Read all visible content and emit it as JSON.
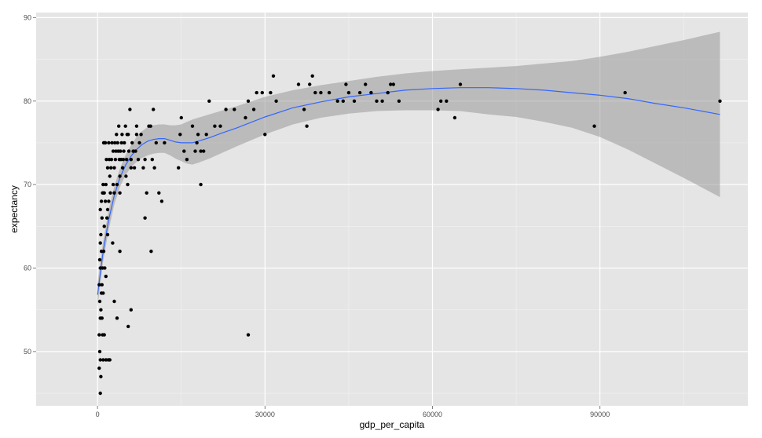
{
  "chart_data": {
    "type": "scatter",
    "title": "",
    "xlabel": "gdp_per_capita",
    "ylabel": "expectancy",
    "xlim": [
      -11000,
      116500
    ],
    "ylim": [
      43.5,
      90.6
    ],
    "x_ticks": [
      0,
      30000,
      60000,
      90000
    ],
    "x_tick_labels": [
      "0",
      "30000",
      "60000",
      "90000"
    ],
    "y_ticks": [
      50,
      60,
      70,
      80,
      90
    ],
    "y_tick_labels": [
      "50",
      "60",
      "70",
      "80",
      "90"
    ],
    "grid": true,
    "legend": "none",
    "colors": {
      "panel": "#e5e5e5",
      "grid_major": "#ffffff",
      "points": "#000000",
      "smooth_line": "#3366ff",
      "confidence_band": "#999999"
    },
    "series": [
      {
        "kind": "points",
        "x": [
          300,
          300,
          300,
          400,
          400,
          400,
          500,
          500,
          500,
          500,
          500,
          500,
          600,
          600,
          600,
          700,
          700,
          700,
          800,
          800,
          900,
          900,
          900,
          1000,
          1000,
          1000,
          1100,
          1100,
          1200,
          1200,
          1200,
          1300,
          1300,
          1400,
          1400,
          1500,
          1500,
          1500,
          1600,
          1700,
          1800,
          1800,
          1900,
          2000,
          2000,
          2100,
          2200,
          2300,
          2400,
          2500,
          2600,
          2700,
          2800,
          2800,
          3000,
          3000,
          3100,
          3200,
          3300,
          3400,
          3500,
          3600,
          3700,
          3800,
          3900,
          4000,
          4000,
          4100,
          4200,
          4300,
          4400,
          4500,
          4600,
          4700,
          4800,
          5000,
          5100,
          5200,
          5300,
          5400,
          5500,
          5600,
          5800,
          6000,
          6000,
          6200,
          6400,
          6600,
          6800,
          7000,
          7300,
          7500,
          7800,
          8200,
          8500,
          8800,
          9200,
          9500,
          9800,
          10000,
          10200,
          10500,
          11000,
          11500,
          12000,
          14500,
          14800,
          15000,
          15500,
          16000,
          17000,
          17500,
          17800,
          18000,
          18500,
          19000,
          19500,
          20000,
          21000,
          22000,
          23000,
          24500,
          26500,
          27000,
          28000,
          28500,
          29500,
          30000,
          31000,
          31500,
          32000,
          36000,
          37000,
          37500,
          38000,
          38500,
          39000,
          40000,
          41500,
          43000,
          44000,
          44500,
          45000,
          46000,
          47000,
          48000,
          49000,
          50000,
          51000,
          52000,
          52500,
          53000,
          54000,
          61000,
          61500,
          62500,
          64000,
          65000,
          89000,
          94500,
          111500,
          800,
          1000,
          1800,
          2200,
          3000,
          3500,
          4000,
          5500,
          6000,
          7000,
          8500,
          9600,
          18500,
          27000
        ],
        "y": [
          48,
          52,
          58,
          50,
          56,
          61,
          45,
          49,
          54,
          60,
          63,
          67,
          47,
          55,
          64,
          57,
          62,
          68,
          58,
          66,
          52,
          60,
          69,
          49,
          57,
          70,
          62,
          75,
          65,
          52,
          69,
          75,
          60,
          68,
          75,
          49,
          59,
          70,
          73,
          66,
          72,
          64,
          49,
          68,
          75,
          73,
          71,
          69,
          72,
          73,
          75,
          63,
          70,
          74,
          69,
          72,
          75,
          73,
          74,
          76,
          70,
          75,
          74,
          77,
          73,
          69,
          71,
          74,
          73,
          75,
          76,
          72,
          73,
          74,
          75,
          77,
          71,
          73,
          76,
          70,
          76,
          74,
          79,
          73,
          72,
          75,
          74,
          72,
          74,
          76,
          73,
          75,
          76,
          72,
          73,
          69,
          77,
          77,
          73,
          79,
          72,
          75,
          69,
          68,
          75,
          72,
          76,
          78,
          74,
          73,
          77,
          74,
          75,
          76,
          70,
          74,
          76,
          80,
          77,
          77,
          79,
          79,
          78,
          80,
          79,
          81,
          81,
          76,
          81,
          83,
          80,
          82,
          79,
          77,
          82,
          83,
          81,
          81,
          81,
          80,
          80,
          82,
          81,
          80,
          81,
          82,
          81,
          80,
          80,
          81,
          82,
          82,
          80,
          79,
          80,
          80,
          78,
          82,
          77,
          81,
          80,
          54,
          69,
          67,
          49,
          56,
          54,
          62,
          53,
          55,
          77,
          66,
          62,
          74,
          52
        ]
      },
      {
        "kind": "smooth",
        "x": [
          0,
          1000,
          2000,
          3000,
          4000,
          5000,
          6000,
          7000,
          8000,
          9000,
          10000,
          11000,
          12000,
          13000,
          14000,
          15000,
          16000,
          17000,
          18000,
          20000,
          22000,
          25000,
          30000,
          35000,
          40000,
          45000,
          50000,
          55000,
          60000,
          65000,
          70000,
          75000,
          80000,
          85000,
          90000,
          95000,
          100000,
          105000,
          111500
        ],
        "y": [
          56.8,
          62.0,
          65.8,
          68.7,
          70.8,
          72.3,
          73.4,
          74.2,
          74.8,
          75.2,
          75.4,
          75.5,
          75.5,
          75.3,
          75.1,
          75.0,
          75.0,
          75.0,
          75.2,
          75.6,
          76.1,
          76.8,
          78.1,
          79.2,
          79.9,
          80.5,
          80.9,
          81.3,
          81.5,
          81.6,
          81.6,
          81.5,
          81.3,
          81.0,
          80.7,
          80.3,
          79.7,
          79.2,
          78.4
        ]
      },
      {
        "kind": "confidence_band",
        "x": [
          0,
          1000,
          2000,
          3000,
          4000,
          5000,
          6000,
          7000,
          8000,
          9000,
          10000,
          11000,
          12000,
          13000,
          14000,
          15000,
          16000,
          17000,
          18000,
          20000,
          22000,
          25000,
          30000,
          35000,
          40000,
          45000,
          50000,
          55000,
          60000,
          65000,
          70000,
          75000,
          80000,
          85000,
          90000,
          95000,
          100000,
          105000,
          111500
        ],
        "upper": [
          58.2,
          63.2,
          67.0,
          69.8,
          71.9,
          73.5,
          74.7,
          75.7,
          76.4,
          76.9,
          77.1,
          77.2,
          77.2,
          77.1,
          77.1,
          77.2,
          77.5,
          77.8,
          78.0,
          78.4,
          78.8,
          79.4,
          80.5,
          81.3,
          81.9,
          82.4,
          82.9,
          83.3,
          83.6,
          83.8,
          84.0,
          84.2,
          84.5,
          84.8,
          85.3,
          85.9,
          86.6,
          87.3,
          88.3
        ],
        "lower": [
          55.4,
          60.8,
          64.6,
          67.6,
          69.7,
          71.1,
          72.1,
          72.7,
          73.2,
          73.5,
          73.7,
          73.8,
          73.8,
          73.5,
          73.1,
          72.8,
          72.5,
          72.4,
          72.6,
          73.1,
          73.7,
          74.6,
          76.0,
          77.2,
          78.0,
          78.5,
          78.8,
          78.9,
          78.9,
          78.8,
          78.4,
          78.1,
          77.5,
          76.8,
          75.7,
          74.2,
          72.5,
          70.8,
          68.5
        ]
      }
    ]
  }
}
